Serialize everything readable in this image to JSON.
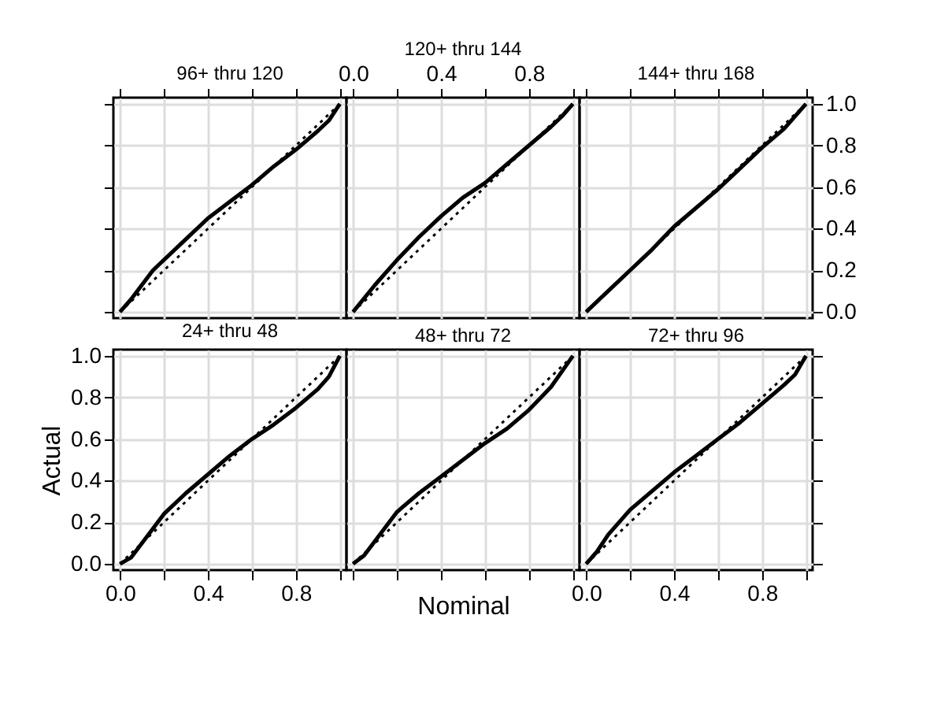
{
  "chart_data": [
    {
      "type": "line",
      "title": "96+ thru 120",
      "xlim": [
        -0.03,
        1.03
      ],
      "ylim": [
        -0.03,
        1.03
      ],
      "grid": true,
      "tick_labels": false,
      "xticks": [
        {
          "value": 0,
          "label": null
        },
        {
          "value": 0.2,
          "label": null
        },
        {
          "value": 0.4,
          "label": null
        },
        {
          "value": 0.6,
          "label": null
        },
        {
          "value": 0.8,
          "label": null
        },
        {
          "value": 1,
          "label": null
        }
      ],
      "yticks": [
        {
          "value": 0,
          "label": null
        },
        {
          "value": 0.2,
          "label": null
        },
        {
          "value": 0.4,
          "label": null
        },
        {
          "value": 0.6,
          "label": null
        },
        {
          "value": 0.8,
          "label": null
        },
        {
          "value": 1,
          "label": null
        }
      ],
      "series": [
        {
          "color": "#000000",
          "line_style": "solid",
          "x": [
            0,
            0.05,
            0.15,
            0.3,
            0.4,
            0.5,
            0.6,
            0.7,
            0.8,
            0.9,
            0.95,
            1
          ],
          "values": [
            0,
            0.06,
            0.2,
            0.35,
            0.45,
            0.53,
            0.61,
            0.7,
            0.78,
            0.87,
            0.92,
            1
          ]
        },
        {
          "color": "#000000",
          "line_style": "dotted",
          "x": [
            0,
            1
          ],
          "values": [
            0,
            1
          ]
        }
      ]
    },
    {
      "type": "line",
      "title": "120+ thru 144",
      "xlim": [
        -0.03,
        1.03
      ],
      "ylim": [
        -0.03,
        1.03
      ],
      "grid": true,
      "tick_labels": "x",
      "xticks": [
        {
          "value": 0,
          "label": "0.0"
        },
        {
          "value": 0.2,
          "label": null
        },
        {
          "value": 0.4,
          "label": "0.4"
        },
        {
          "value": 0.6,
          "label": null
        },
        {
          "value": 0.8,
          "label": "0.8"
        },
        {
          "value": 1,
          "label": null
        }
      ],
      "yticks": [
        {
          "value": 0,
          "label": null
        },
        {
          "value": 0.2,
          "label": null
        },
        {
          "value": 0.4,
          "label": null
        },
        {
          "value": 0.6,
          "label": null
        },
        {
          "value": 0.8,
          "label": null
        },
        {
          "value": 1,
          "label": null
        }
      ],
      "series": [
        {
          "color": "#000000",
          "line_style": "solid",
          "x": [
            0,
            0.1,
            0.2,
            0.3,
            0.4,
            0.5,
            0.6,
            0.7,
            0.8,
            0.9,
            0.95,
            1
          ],
          "values": [
            0,
            0.13,
            0.25,
            0.36,
            0.46,
            0.55,
            0.62,
            0.71,
            0.8,
            0.89,
            0.94,
            1
          ]
        },
        {
          "color": "#000000",
          "line_style": "dotted",
          "x": [
            0,
            1
          ],
          "values": [
            0,
            1
          ]
        }
      ]
    },
    {
      "type": "line",
      "title": "144+ thru 168",
      "xlim": [
        -0.03,
        1.03
      ],
      "ylim": [
        -0.03,
        1.03
      ],
      "grid": true,
      "tick_labels": "y",
      "xticks": [
        {
          "value": 0,
          "label": null
        },
        {
          "value": 0.2,
          "label": null
        },
        {
          "value": 0.4,
          "label": null
        },
        {
          "value": 0.6,
          "label": null
        },
        {
          "value": 0.8,
          "label": null
        },
        {
          "value": 1,
          "label": null
        }
      ],
      "yticks": [
        {
          "value": 0,
          "label": "0.0"
        },
        {
          "value": 0.2,
          "label": "0.2"
        },
        {
          "value": 0.4,
          "label": "0.4"
        },
        {
          "value": 0.6,
          "label": "0.6"
        },
        {
          "value": 0.8,
          "label": "0.8"
        },
        {
          "value": 1,
          "label": "1.0"
        }
      ],
      "series": [
        {
          "color": "#000000",
          "line_style": "solid",
          "x": [
            0,
            0.1,
            0.2,
            0.3,
            0.4,
            0.5,
            0.6,
            0.7,
            0.8,
            0.9,
            1
          ],
          "values": [
            0,
            0.1,
            0.2,
            0.3,
            0.41,
            0.5,
            0.59,
            0.69,
            0.79,
            0.88,
            1
          ]
        },
        {
          "color": "#000000",
          "line_style": "dotted",
          "x": [
            0,
            1
          ],
          "values": [
            0,
            1
          ]
        }
      ]
    },
    {
      "type": "line",
      "title": "24+ thru  48",
      "ylabel": "Actual",
      "xlim": [
        -0.03,
        1.03
      ],
      "ylim": [
        -0.03,
        1.03
      ],
      "grid": true,
      "xticks": [
        {
          "value": 0,
          "label": "0.0"
        },
        {
          "value": 0.2,
          "label": null
        },
        {
          "value": 0.4,
          "label": "0.4"
        },
        {
          "value": 0.6,
          "label": null
        },
        {
          "value": 0.8,
          "label": "0.8"
        },
        {
          "value": 1,
          "label": null
        }
      ],
      "yticks": [
        {
          "value": 0,
          "label": "0.0"
        },
        {
          "value": 0.2,
          "label": "0.2"
        },
        {
          "value": 0.4,
          "label": "0.4"
        },
        {
          "value": 0.6,
          "label": "0.6"
        },
        {
          "value": 0.8,
          "label": "0.8"
        },
        {
          "value": 1,
          "label": "1.0"
        }
      ],
      "series": [
        {
          "color": "#000000",
          "line_style": "solid",
          "x": [
            0,
            0.05,
            0.15,
            0.2,
            0.3,
            0.4,
            0.5,
            0.6,
            0.7,
            0.8,
            0.9,
            0.95,
            1
          ],
          "values": [
            0,
            0.03,
            0.17,
            0.24,
            0.34,
            0.43,
            0.52,
            0.6,
            0.67,
            0.75,
            0.84,
            0.9,
            1
          ]
        },
        {
          "color": "#000000",
          "line_style": "dotted",
          "x": [
            0,
            1
          ],
          "values": [
            0,
            1
          ]
        }
      ]
    },
    {
      "type": "line",
      "title": "48+ thru  72",
      "xlabel": "Nominal",
      "xlim": [
        -0.03,
        1.03
      ],
      "ylim": [
        -0.03,
        1.03
      ],
      "grid": true,
      "tick_labels": false,
      "xticks": [
        {
          "value": 0,
          "label": null
        },
        {
          "value": 0.2,
          "label": null
        },
        {
          "value": 0.4,
          "label": null
        },
        {
          "value": 0.6,
          "label": null
        },
        {
          "value": 0.8,
          "label": null
        },
        {
          "value": 1,
          "label": null
        }
      ],
      "yticks": [
        {
          "value": 0,
          "label": null
        },
        {
          "value": 0.2,
          "label": null
        },
        {
          "value": 0.4,
          "label": null
        },
        {
          "value": 0.6,
          "label": null
        },
        {
          "value": 0.8,
          "label": null
        },
        {
          "value": 1,
          "label": null
        }
      ],
      "series": [
        {
          "color": "#000000",
          "line_style": "solid",
          "x": [
            0,
            0.05,
            0.15,
            0.2,
            0.3,
            0.4,
            0.5,
            0.6,
            0.7,
            0.8,
            0.9,
            1
          ],
          "values": [
            0,
            0.04,
            0.18,
            0.25,
            0.34,
            0.42,
            0.5,
            0.58,
            0.65,
            0.74,
            0.85,
            1
          ]
        },
        {
          "color": "#000000",
          "line_style": "dotted",
          "x": [
            0,
            1
          ],
          "values": [
            0,
            1
          ]
        }
      ]
    },
    {
      "type": "line",
      "title": "72+ thru  96",
      "xlim": [
        -0.03,
        1.03
      ],
      "ylim": [
        -0.03,
        1.03
      ],
      "grid": true,
      "tick_labels": "x",
      "xticks": [
        {
          "value": 0,
          "label": "0.0"
        },
        {
          "value": 0.2,
          "label": null
        },
        {
          "value": 0.4,
          "label": "0.4"
        },
        {
          "value": 0.6,
          "label": null
        },
        {
          "value": 0.8,
          "label": "0.8"
        },
        {
          "value": 1,
          "label": null
        }
      ],
      "yticks": [
        {
          "value": 0,
          "label": null
        },
        {
          "value": 0.2,
          "label": null
        },
        {
          "value": 0.4,
          "label": null
        },
        {
          "value": 0.6,
          "label": null
        },
        {
          "value": 0.8,
          "label": null
        },
        {
          "value": 1,
          "label": null
        }
      ],
      "series": [
        {
          "color": "#000000",
          "line_style": "solid",
          "x": [
            0,
            0.05,
            0.1,
            0.2,
            0.3,
            0.4,
            0.5,
            0.6,
            0.7,
            0.8,
            0.9,
            0.95,
            1
          ],
          "values": [
            0,
            0.06,
            0.14,
            0.26,
            0.35,
            0.44,
            0.52,
            0.6,
            0.68,
            0.77,
            0.86,
            0.91,
            1
          ]
        },
        {
          "color": "#000000",
          "line_style": "dotted",
          "x": [
            0,
            1
          ],
          "values": [
            0,
            1
          ]
        }
      ]
    }
  ]
}
